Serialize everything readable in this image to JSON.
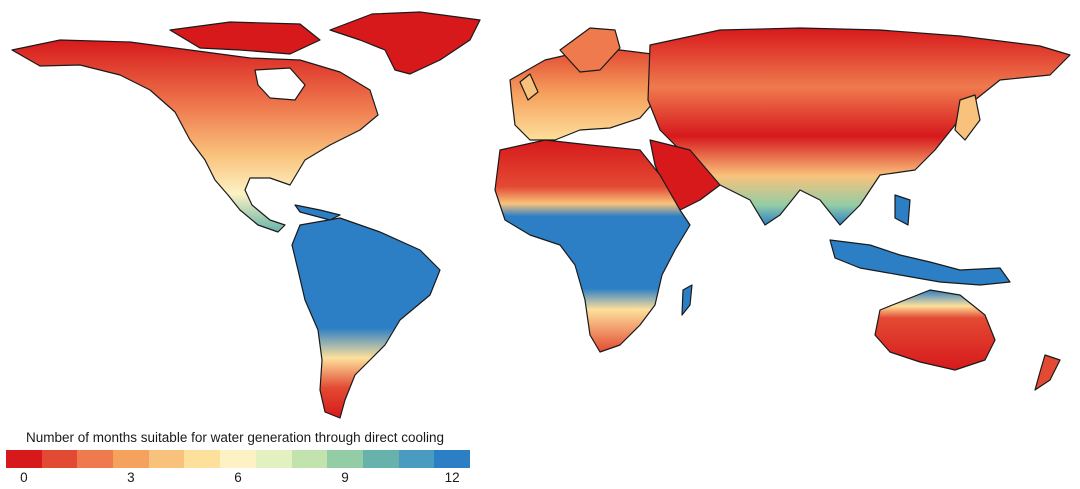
{
  "legend": {
    "title": "Number of months suitable for water generation through direct cooling",
    "colors": [
      "#d7191c",
      "#e34a33",
      "#ef7a4e",
      "#f6a25f",
      "#f9c27c",
      "#fde09b",
      "#fdf2c3",
      "#e3f1c0",
      "#c2e3ae",
      "#93cda5",
      "#67b3ab",
      "#4a9bc0",
      "#2c7fc5"
    ],
    "ticks": [
      {
        "label": "0",
        "value": 0
      },
      {
        "label": "3",
        "value": 3
      },
      {
        "label": "6",
        "value": 6
      },
      {
        "label": "9",
        "value": 9
      },
      {
        "label": "12",
        "value": 12
      }
    ],
    "max": 12
  }
}
